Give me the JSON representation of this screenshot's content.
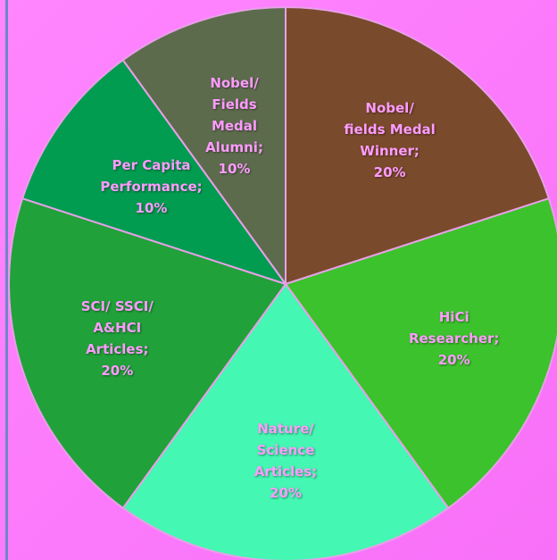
{
  "chart_data": {
    "type": "pie",
    "categories": [
      "Nobel/\nfields Medal\nWinner;",
      "HiCi\nResearcher;",
      "Nature/\nScience\nArticles;",
      "SCI/ SSCI/\nA&HCI\nArticles;",
      "Per Capita\nPerformance;",
      "Nobel/\nFields\nMedal\nAlumni;"
    ],
    "values": [
      20,
      20,
      20,
      20,
      10,
      10
    ],
    "value_labels": [
      "20%",
      "20%",
      "20%",
      "20%",
      "10%",
      "10%"
    ],
    "colors": [
      "#7a4a2c",
      "#3cc22c",
      "#44f7b2",
      "#21a13a",
      "#019c50",
      "#5d6b4d"
    ]
  }
}
